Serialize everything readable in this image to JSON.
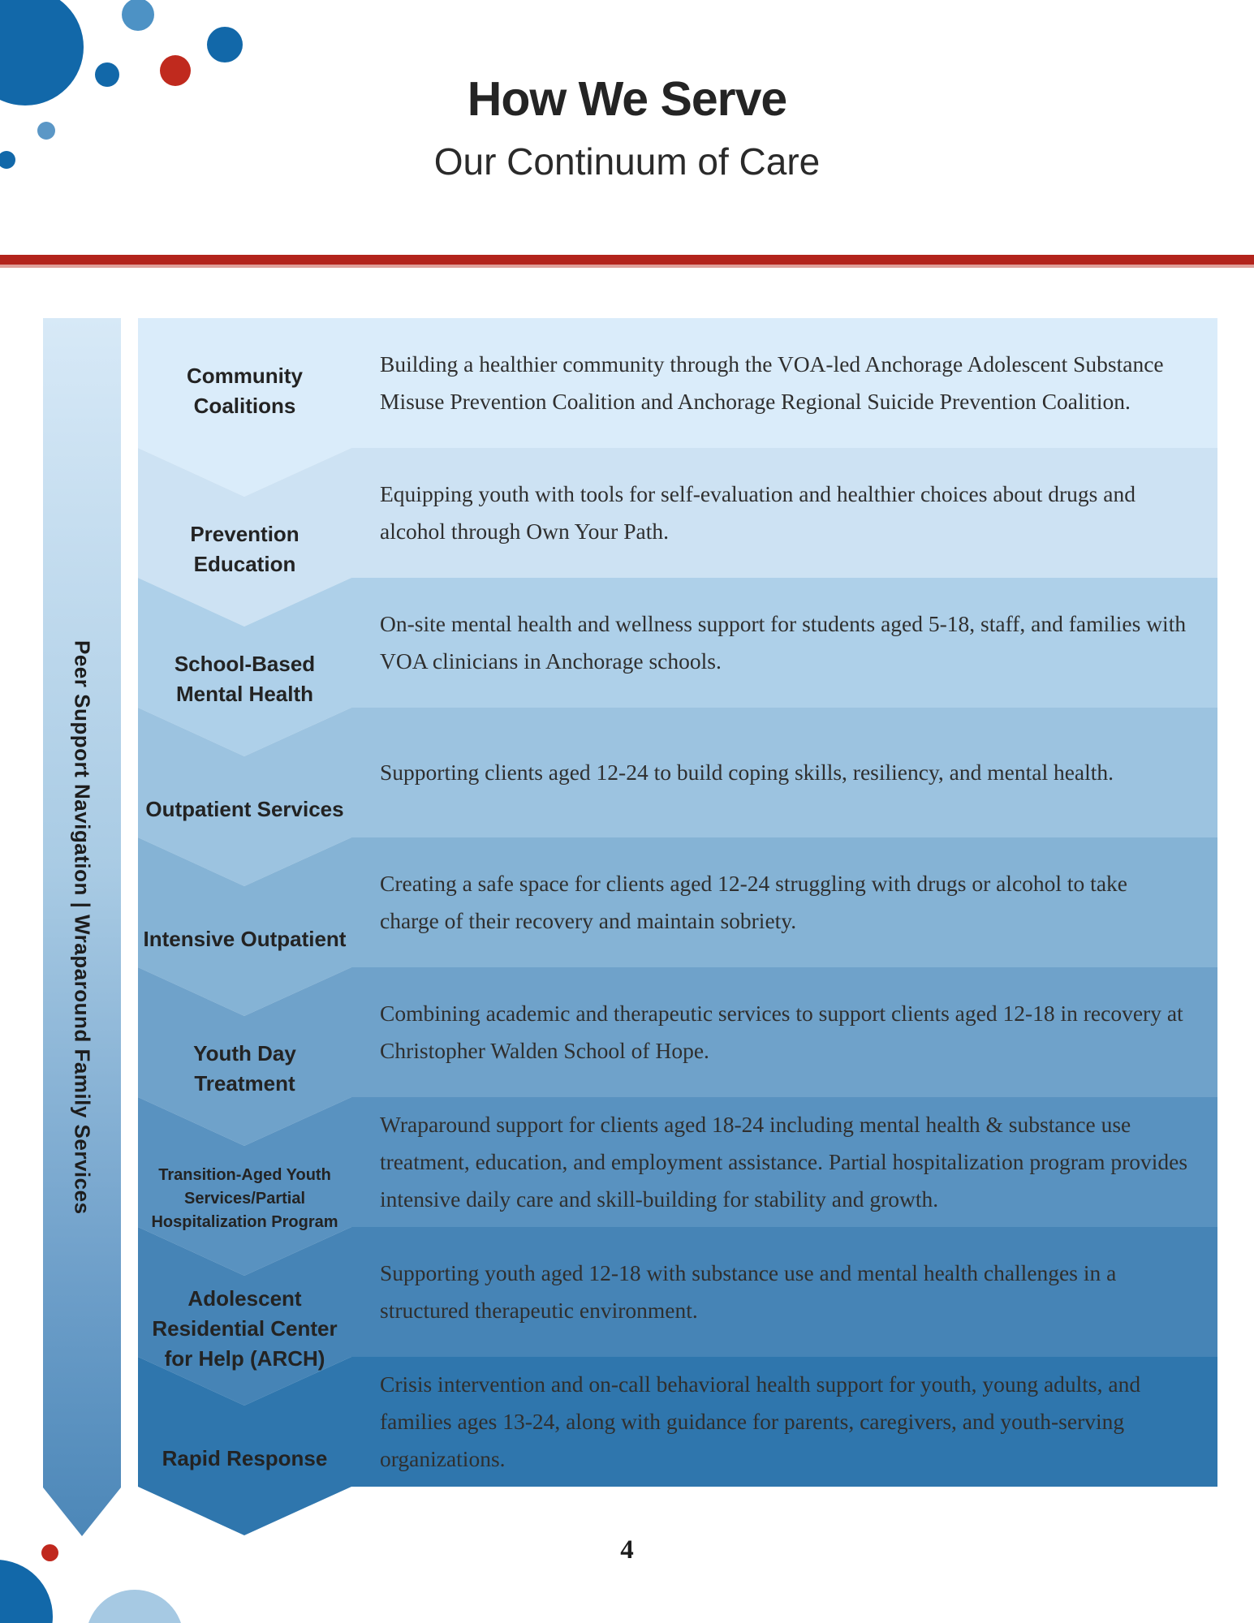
{
  "page": {
    "title": "How We Serve",
    "subtitle": "Our Continuum of Care",
    "page_number": "4",
    "banner_text": "Peer Support Navigation | Wraparound Family Services"
  },
  "colors": {
    "accent_red": "#b3241c",
    "brand_dark_blue": "#1268a9",
    "brand_light_blue": "#4d92c5",
    "pale_blue": "#a6c9e3"
  },
  "rows": [
    {
      "label": "Community Coalitions",
      "description": "Building a healthier community through the VOA-led Anchorage Adolescent Substance Misuse Prevention Coalition and Anchorage Regional Suicide Prevention Coalition.",
      "color": "#daecfa"
    },
    {
      "label": "Prevention Education",
      "description": "Equipping youth with tools for self-evaluation and healthier choices about drugs and alcohol through Own Your Path.",
      "color": "#cde2f3"
    },
    {
      "label": "School-Based Mental Health",
      "description": "On-site mental health and wellness support for students aged 5-18, staff, and families with VOA clinicians in Anchorage schools.",
      "color": "#aed0e9"
    },
    {
      "label": "Outpatient Services",
      "description": "Supporting clients aged 12-24 to build coping skills, resiliency, and mental health.",
      "color": "#9cc3e0"
    },
    {
      "label": "Intensive Outpatient",
      "description": "Creating a safe space for clients aged 12-24 struggling with drugs or alcohol to take charge of their recovery and maintain sobriety.",
      "color": "#85b3d5"
    },
    {
      "label": "Youth Day Treatment",
      "description": "Combining academic and therapeutic services to support clients aged 12-18 in recovery at Christopher Walden School of Hope.",
      "color": "#6fa2ca"
    },
    {
      "label": "Transition-Aged Youth Services/Partial Hospitalization Program",
      "description": "Wraparound support for clients aged 18-24 including mental health & substance use treatment, education, and employment assistance. Partial hospitalization program provides intensive daily care and skill-building for stability and growth.",
      "color": "#5992c0",
      "small_label": true
    },
    {
      "label": "Adolescent Residential Center for Help (ARCH)",
      "description": "Supporting youth aged 12-18 with substance use and mental health challenges in a structured therapeutic environment.",
      "color": "#4684b6"
    },
    {
      "label": "Rapid Response",
      "description": "Crisis intervention and on-call behavioral health support for youth, young adults, and families ages 13-24, along with guidance for parents, caregivers, and youth-serving organizations.",
      "color": "#2f76ad"
    }
  ]
}
